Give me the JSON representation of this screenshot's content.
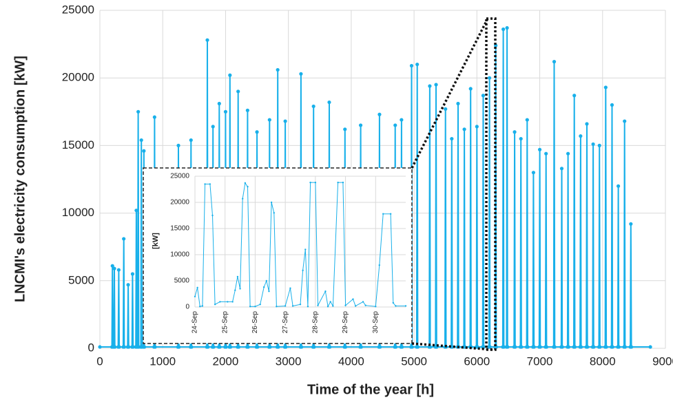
{
  "chart_data": [
    {
      "type": "line",
      "x_label": "Time of the year [h]",
      "y_label": "LNCMI's electricity consumption [kW]",
      "color": "#18b0ea",
      "grid": true,
      "xlim": [
        0,
        9000
      ],
      "xticks": [
        0,
        1000,
        2000,
        3000,
        4000,
        5000,
        6000,
        7000,
        8000,
        9000
      ],
      "ylim": [
        0,
        25000
      ],
      "yticks": [
        0,
        5000,
        10000,
        15000,
        20000,
        25000
      ],
      "x": [
        0,
        192,
        200,
        208,
        222,
        230,
        238,
        292,
        300,
        308,
        372,
        380,
        388,
        442,
        450,
        458,
        512,
        520,
        528,
        572,
        580,
        588,
        602,
        610,
        618,
        652,
        660,
        668,
        692,
        700,
        708,
        862,
        870,
        878,
        1242,
        1250,
        1258,
        1442,
        1450,
        1458,
        1702,
        1710,
        1718,
        1792,
        1800,
        1808,
        1892,
        1900,
        1908,
        1992,
        2000,
        2008,
        2062,
        2070,
        2078,
        2192,
        2200,
        2208,
        2342,
        2350,
        2358,
        2492,
        2500,
        2508,
        2692,
        2700,
        2708,
        2822,
        2830,
        2838,
        2942,
        2950,
        2958,
        3192,
        3200,
        3208,
        3392,
        3400,
        3408,
        3642,
        3650,
        3658,
        3892,
        3900,
        3908,
        4142,
        4150,
        4158,
        4442,
        4450,
        4458,
        4692,
        4700,
        4708,
        4792,
        4800,
        4808,
        4952,
        4960,
        4968,
        5042,
        5050,
        5058,
        5242,
        5250,
        5258,
        5342,
        5350,
        5358,
        5492,
        5500,
        5508,
        5592,
        5600,
        5608,
        5692,
        5700,
        5708,
        5792,
        5800,
        5808,
        5892,
        5900,
        5908,
        5992,
        6000,
        6008,
        6092,
        6100,
        6108,
        6192,
        6200,
        6208,
        6292,
        6300,
        6308,
        6412,
        6420,
        6428,
        6472,
        6480,
        6488,
        6592,
        6600,
        6608,
        6692,
        6700,
        6708,
        6792,
        6800,
        6808,
        6892,
        6900,
        6908,
        6992,
        7000,
        7008,
        7092,
        7100,
        7108,
        7222,
        7230,
        7238,
        7342,
        7350,
        7358,
        7442,
        7450,
        7458,
        7542,
        7550,
        7558,
        7642,
        7650,
        7658,
        7742,
        7750,
        7758,
        7842,
        7850,
        7858,
        7942,
        7950,
        7958,
        8042,
        8050,
        8058,
        8142,
        8150,
        8158,
        8242,
        8250,
        8258,
        8342,
        8350,
        8358,
        8442,
        8450,
        8458,
        8760
      ],
      "values": [
        100,
        100,
        6100,
        100,
        100,
        5900,
        100,
        100,
        5800,
        100,
        100,
        8100,
        100,
        100,
        4700,
        100,
        100,
        5500,
        100,
        100,
        10200,
        100,
        100,
        17500,
        100,
        100,
        15400,
        100,
        100,
        14600,
        100,
        100,
        17100,
        100,
        100,
        15000,
        100,
        100,
        15400,
        100,
        100,
        22800,
        100,
        100,
        16400,
        100,
        100,
        18100,
        100,
        100,
        17500,
        100,
        100,
        20200,
        100,
        100,
        19000,
        100,
        100,
        17600,
        100,
        100,
        16000,
        100,
        100,
        16900,
        100,
        100,
        20600,
        100,
        100,
        16800,
        100,
        100,
        20300,
        100,
        100,
        17900,
        100,
        100,
        18200,
        100,
        100,
        16200,
        100,
        100,
        16500,
        100,
        100,
        17300,
        100,
        100,
        16500,
        100,
        100,
        16900,
        100,
        100,
        20900,
        100,
        100,
        21000,
        100,
        100,
        19400,
        100,
        100,
        19500,
        100,
        100,
        17700,
        100,
        100,
        15500,
        100,
        100,
        18100,
        100,
        100,
        16200,
        100,
        100,
        19200,
        100,
        100,
        16400,
        100,
        100,
        18700,
        100,
        100,
        20000,
        100,
        100,
        22400,
        100,
        100,
        23600,
        100,
        100,
        23700,
        100,
        100,
        16000,
        100,
        100,
        15500,
        100,
        100,
        16900,
        100,
        100,
        13000,
        100,
        100,
        14700,
        100,
        100,
        14400,
        100,
        100,
        21200,
        100,
        100,
        13300,
        100,
        100,
        14400,
        100,
        100,
        18700,
        100,
        100,
        15700,
        100,
        100,
        16600,
        100,
        100,
        15100,
        100,
        100,
        15000,
        100,
        100,
        19300,
        100,
        100,
        18000,
        100,
        100,
        12000,
        100,
        100,
        16800,
        100,
        100,
        9200,
        100,
        100
      ]
    },
    {
      "type": "line",
      "y_label": "[kW]",
      "color": "#18b0ea",
      "grid": true,
      "xlim": [
        0,
        168
      ],
      "xticks": [
        {
          "value": 0,
          "label": "24-Sep"
        },
        {
          "value": 24,
          "label": "25-Sep"
        },
        {
          "value": 48,
          "label": "26-Sep"
        },
        {
          "value": 72,
          "label": "27-Sep"
        },
        {
          "value": 96,
          "label": "28-Sep"
        },
        {
          "value": 120,
          "label": "29-Sep"
        },
        {
          "value": 144,
          "label": "30-Sep"
        }
      ],
      "ylim": [
        0,
        25000
      ],
      "yticks": [
        0,
        5000,
        10000,
        15000,
        20000,
        25000
      ],
      "x": [
        0,
        2,
        4,
        6,
        8,
        12,
        14,
        16,
        20,
        26,
        30,
        32,
        34,
        36,
        38,
        40,
        42,
        44,
        48,
        52,
        55,
        57,
        59,
        61,
        63,
        65,
        72,
        76,
        78,
        84,
        86,
        88,
        90,
        92,
        96,
        98,
        104,
        106,
        108,
        110,
        114,
        118,
        120,
        126,
        128,
        134,
        136,
        144,
        147,
        150,
        156,
        158,
        160,
        168
      ],
      "values": [
        2000,
        3700,
        100,
        200,
        23500,
        23500,
        17500,
        500,
        1000,
        1000,
        1000,
        3200,
        5800,
        3500,
        20700,
        23700,
        23000,
        100,
        100,
        500,
        3800,
        5000,
        3000,
        20000,
        18000,
        100,
        200,
        3600,
        200,
        500,
        7000,
        11000,
        100,
        23800,
        23800,
        300,
        3000,
        100,
        1000,
        200,
        23800,
        23800,
        300,
        1500,
        200,
        1000,
        300,
        100,
        8000,
        17800,
        17800,
        800,
        200,
        200
      ]
    }
  ]
}
